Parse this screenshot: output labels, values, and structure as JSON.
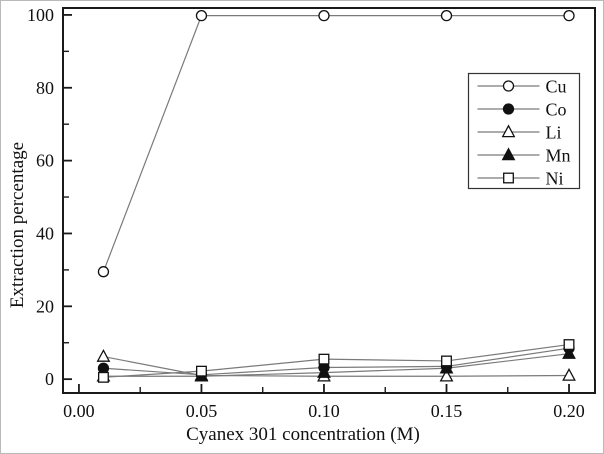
{
  "colors": {
    "background": "#ffffff",
    "frame": "#1a1a1a",
    "line": "#7a7a7a",
    "marker": "#111111",
    "text": "#111111",
    "legend_border": "#333333"
  },
  "chart_data": {
    "type": "line",
    "title": "",
    "xlabel": "Cyanex 301 concentration (M)",
    "ylabel": "Extraction percentage",
    "x": [
      0.01,
      0.05,
      0.1,
      0.15,
      0.2
    ],
    "series": [
      {
        "name": "Cu",
        "marker": "circle-open",
        "values": [
          29.5,
          99.8,
          99.8,
          99.8,
          99.8
        ]
      },
      {
        "name": "Co",
        "marker": "circle-filled",
        "values": [
          3.0,
          1.2,
          3.2,
          3.5,
          8.5
        ]
      },
      {
        "name": "Li",
        "marker": "triangle-open",
        "values": [
          6.2,
          1.0,
          0.8,
          0.8,
          1.0
        ]
      },
      {
        "name": "Mn",
        "marker": "triangle-filled",
        "values": [
          0.8,
          0.8,
          1.8,
          3.0,
          7.0
        ]
      },
      {
        "name": "Ni",
        "marker": "square-open",
        "values": [
          0.5,
          2.2,
          5.5,
          5.0,
          9.5
        ]
      }
    ],
    "x_ticks": {
      "major": [
        0,
        0.05,
        0.1,
        0.15,
        0.2
      ],
      "minor": [
        0.025,
        0.075,
        0.125,
        0.175
      ],
      "labels": [
        "0.00",
        "0.05",
        "0.10",
        "0.15",
        "0.20"
      ]
    },
    "y_ticks": {
      "major": [
        0,
        20,
        40,
        60,
        80,
        100
      ],
      "minor": [
        10,
        30,
        50,
        70,
        90
      ],
      "labels": [
        "0",
        "20",
        "40",
        "60",
        "80",
        "100"
      ]
    },
    "xlim": [
      -0.0065,
      0.2106
    ],
    "ylim": [
      -3.8,
      101.9
    ],
    "grid": false,
    "legend": {
      "position": "upper-right",
      "entries": [
        "Cu",
        "Co",
        "Li",
        "Mn",
        "Ni"
      ]
    }
  }
}
